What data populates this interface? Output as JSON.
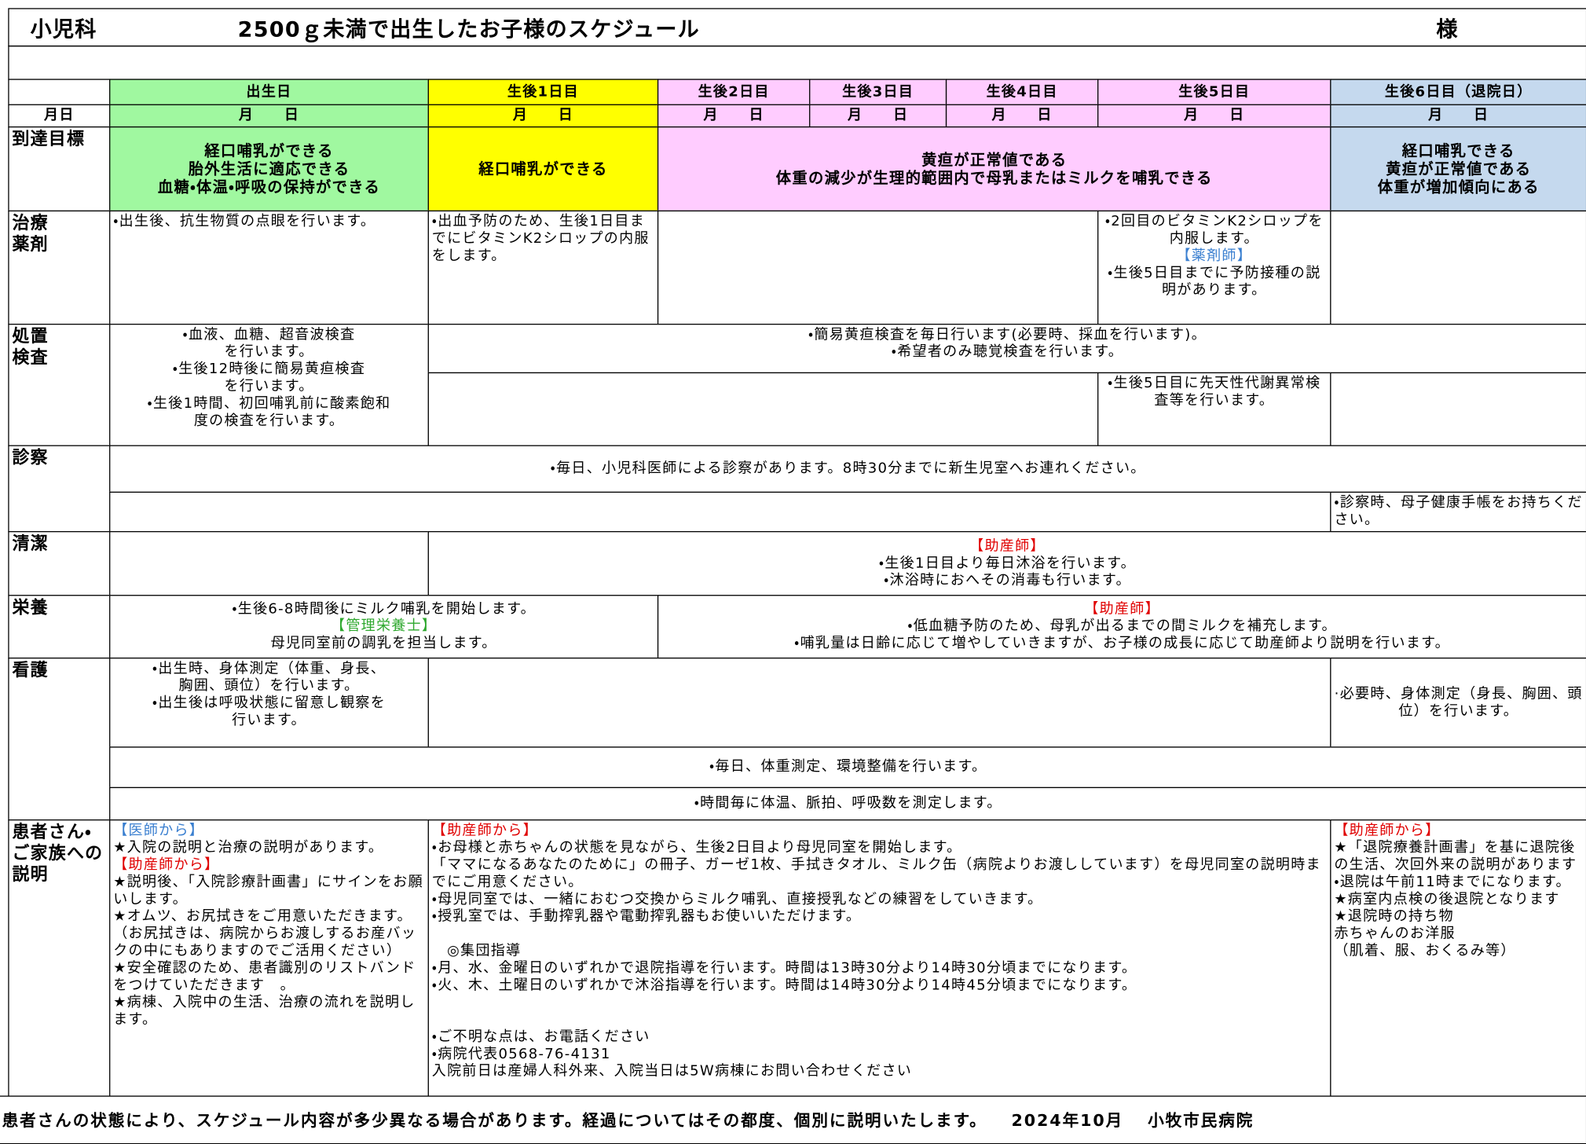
{
  "header": {
    "department": "小児科",
    "title": "2500ｇ未満で出生したお子様のスケジュール",
    "honorific": "様"
  },
  "columns": [
    "出生日",
    "生後1日目",
    "生後2日目",
    "生後3日目",
    "生後4日目",
    "生後5日目",
    "生後6日目（退院日）"
  ],
  "date_label": "月日",
  "dates": [
    "月　　日",
    "月　　日",
    "月　　日",
    "月　　日",
    "月　　日",
    "月　　日",
    "月　　日"
  ],
  "rows": [
    {
      "label": "到達目標",
      "cells": [
        "経口哺乳ができる\n胎外生活に適応できる\n血糖・体温・呼吸の保持ができる",
        "経口哺乳ができる",
        "黄疸が正常値である\n体重の減少が生理的範囲内で母乳またはミルクを哺乳できる",
        "経口哺乳できる\n黄疸が正常値である\n体重が増加傾向にある"
      ]
    },
    {
      "label": "治療\n薬剤",
      "cells": [
        "・出生後、抗生物質の点眼を行います。",
        "・出血予防のため、生後1日目までにビタミンK2シロップの内服をします。",
        [
          "・2回目のビタミンK2シロップを内服します。",
          "【薬剤師】",
          "・生後5日目までに予防接種の説明があります。"
        ]
      ]
    },
    {
      "label": "処置\n検査",
      "cells": [
        "・血液、血糖、超音波検査\nを行います。\n・生後12時後に簡易黄疸検査\nを行います。\n・生後1時間、初回哺乳前に酸素飽和\n度の検査を行います。",
        "・簡易黄疸検査を毎日行います(必要時、採血を行います)。\n・希望者のみ聴覚検査を行います。",
        "・生後5日目に先天性代謝異常検査等を行います。"
      ]
    },
    {
      "label": "診察",
      "cells": [
        "・毎日、小児科医師による診察があります。8時30分までに新生児室へお連れください。",
        "・診察時、母子健康手帳をお持ちください。"
      ]
    },
    {
      "label": "清潔",
      "cells": [
        [
          "【助産師】",
          "・生後1日目より毎日沐浴を行います。\n・沐浴時におへその消毒も行います。"
        ]
      ]
    },
    {
      "label": "栄養",
      "cells": [
        [
          "・生後6-8時間後にミルク哺乳を開始します。",
          "【管理栄養士】",
          "母児同室前の調乳を担当します。"
        ],
        [
          "【助産師】",
          "・低血糖予防のため、母乳が出るまでの間ミルクを補充します。\n・哺乳量は日齢に応じて増やしていきますが、お子様の成長に応じて助産師より説明を行います。"
        ]
      ]
    },
    {
      "label": "看護",
      "cells": [
        "・出生時、身体測定（体重、身長、\n胸囲、頭位）を行います。\n・出生後は呼吸状態に留意し観察を\n行います。",
        "·必要時、身体測定（身長、胸囲、頭位）を行います。",
        "・毎日、体重測定、環境整備を行います。",
        "・時間毎に体温、脈拍、呼吸数を測定します。"
      ]
    },
    {
      "label": "患者さん・ご家族への説明",
      "cells": [
        [
          "【医師から】",
          "★入院の説明と治療の説明があります。",
          "【助産師から】",
          "★説明後、「入院診療計画書」にサインをお願いします。\n★オムツ、お尻拭きをご用意いただきます。（お尻拭きは、病院からお渡しするお産バックの中にもありますのでご活用ください）\n★安全確認のため、患者識別のリストバンドをつけていただきます　。\n★病棟、入院中の生活、治療の流れを説明します。"
        ],
        [
          "【助産師から】",
          "・お母様と赤ちゃんの状態を見ながら、生後2日目より母児同室を開始します。\n「ママになるあなたのために」の冊子、ガーゼ1枚、手拭きタオル、ミルク缶（病院よりお渡ししています）を母児同室の説明時までにご用意ください。\n・母児同室では、一緒におむつ交換からミルク哺乳、直接授乳などの練習をしていきます。\n・授乳室では、手動搾乳器や電動搾乳器もお使いいただけます。\n\n　◎集団指導\n・月、水、金曜日のいずれかで退院指導を行います。時間は13時30分より14時30分頃までになります。\n・火、木、土曜日のいずれかで沐浴指導を行います。時間は14時30分より14時45分頃までになります。\n\n\n・ご不明な点は、お電話ください\n・病院代表0568-76-4131\n入院前日は産婦人科外来、入院当日は5W病棟にお問い合わせください"
        ],
        [
          "【助産師から】",
          "★「退院療養計画書」を基に退院後の生活、次回外来の説明があります\n・退院は午前11時までになります。\n★病室内点検の後退院となります\n★退院時の持ち物\n赤ちゃんのお洋服\n（肌着、服、おくるみ等）"
        ]
      ]
    }
  ],
  "footer": {
    "note": "患者さんの状態により、スケジュール内容が多少異なる場合があります。経過についてはその都度、個別に説明いたします。",
    "date": "2024年10月",
    "hospital": "小牧市民病院"
  }
}
